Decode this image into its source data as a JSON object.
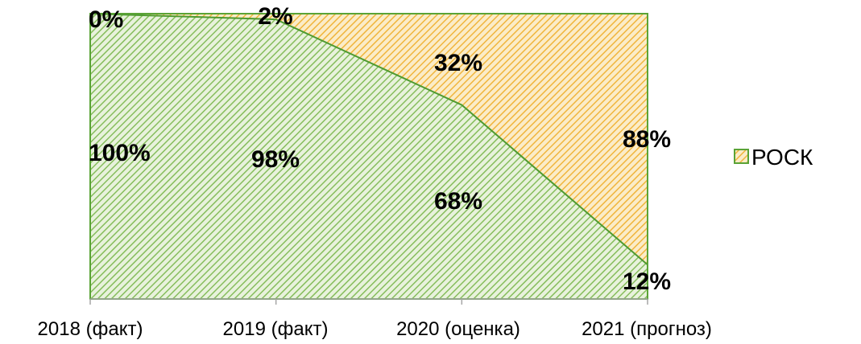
{
  "chart_data": {
    "type": "area",
    "stacked": "percent",
    "categories": [
      "2018 (факт)",
      "2019 (факт)",
      "2020 (оценка)",
      "2021 (прогноз)"
    ],
    "series": [
      {
        "values": [
          100,
          98,
          68,
          12
        ],
        "labels": [
          "100%",
          "98%",
          "68%",
          "12%"
        ],
        "color": "#70ad47",
        "pattern": "diagonal-stripes"
      },
      {
        "values": [
          0,
          2,
          32,
          88
        ],
        "labels": [
          "0%",
          "2%",
          "32%",
          "88%"
        ],
        "color": "#ed9f2d",
        "pattern": "diagonal-stripes"
      }
    ],
    "legend": {
      "entries": [
        "РОСК"
      ],
      "position": "right"
    },
    "ylim": [
      0,
      100
    ],
    "grid": false
  }
}
